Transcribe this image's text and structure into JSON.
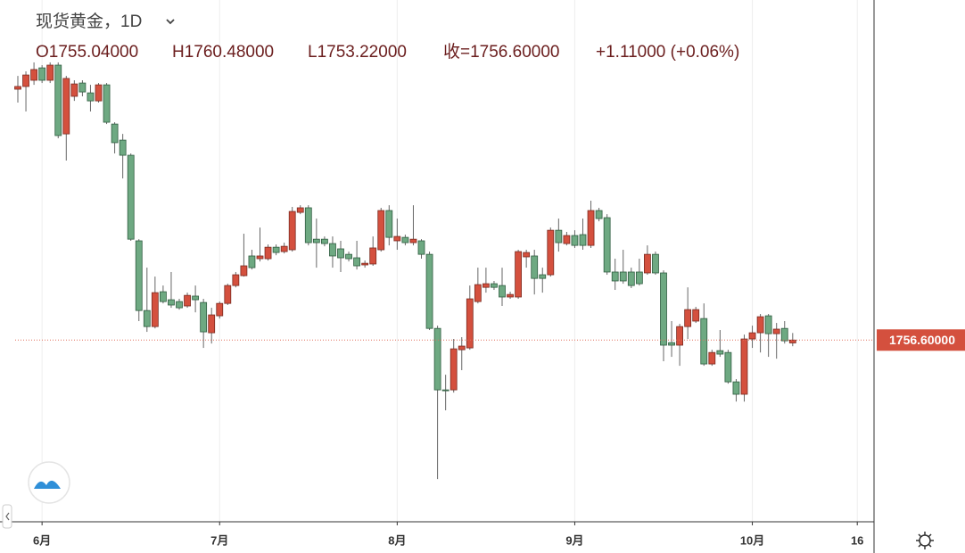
{
  "chart_data": {
    "type": "candlestick",
    "title": "现货黄金，1D",
    "legend_text": [
      "O1755.04000",
      "H1760.48000",
      "L1753.22000",
      "收=1756.60000",
      "+1.11000 (+0.06%)"
    ],
    "last_price": {
      "value": 1756.6,
      "label": "1756.60000"
    },
    "up_color": "#d4503e",
    "down_color": "#6ea982",
    "ylim": [
      1657,
      1943
    ],
    "categories": [
      null,
      null,
      null,
      "6月",
      null,
      null,
      null,
      null,
      null,
      null,
      null,
      null,
      null,
      null,
      null,
      null,
      null,
      null,
      null,
      null,
      null,
      null,
      null,
      null,
      null,
      "7月",
      null,
      null,
      null,
      null,
      null,
      null,
      null,
      null,
      null,
      null,
      null,
      null,
      null,
      null,
      null,
      null,
      null,
      null,
      null,
      null,
      null,
      "8月",
      null,
      null,
      null,
      null,
      null,
      null,
      null,
      null,
      null,
      null,
      null,
      null,
      null,
      null,
      null,
      null,
      null,
      null,
      null,
      null,
      null,
      "9月",
      null,
      null,
      null,
      null,
      null,
      null,
      null,
      null,
      null,
      null,
      null,
      null,
      null,
      null,
      null,
      null,
      null,
      null,
      null,
      null,
      null,
      "10月",
      null,
      null,
      null,
      null,
      null,
      null,
      null,
      null,
      null,
      null,
      null,
      null,
      "16"
    ],
    "open": [
      1894.1,
      1895.6,
      1899.0,
      1905.8,
      1899.0,
      1907.3,
      1869.6,
      1890.2,
      1897.5,
      1892.1,
      1887.7,
      1896.5,
      1875.0,
      1866.2,
      1857.9,
      1811.0,
      1772.8,
      1764.0,
      1783.1,
      1778.7,
      1777.7,
      1775.3,
      1780.7,
      1777.2,
      1760.6,
      1769.9,
      1776.7,
      1786.5,
      1791.9,
      1802.7,
      1801.2,
      1801.2,
      1807.5,
      1805.1,
      1806.1,
      1826.6,
      1829.1,
      1811.9,
      1811.9,
      1809.5,
      1806.6,
      1803.6,
      1801.7,
      1797.8,
      1798.3,
      1806.1,
      1827.6,
      1811.0,
      1812.9,
      1810.0,
      1811.0,
      1803.6,
      1763.0,
      1729.3,
      1729.3,
      1751.3,
      1752.3,
      1777.7,
      1785.5,
      1787.5,
      1786.5,
      1780.2,
      1780.2,
      1802.2,
      1802.7,
      1792.4,
      1792.4,
      1816.8,
      1809.5,
      1813.9,
      1814.4,
      1808.5,
      1827.6,
      1823.7,
      1793.9,
      1793.9,
      1793.9,
      1793.9,
      1793.4,
      1803.6,
      1793.4,
      1755.2,
      1753.8,
      1764.0,
      1767.0,
      1768.4,
      1743.5,
      1750.8,
      1749.8,
      1733.7,
      1726.9,
      1757.2,
      1760.6,
      1769.9,
      1760.1,
      1763.0,
      1755.04,
      null,
      null,
      null,
      null,
      null,
      null,
      null,
      null
    ],
    "high": [
      1901.4,
      1903.9,
      1908.8,
      1907.3,
      1908.8,
      1908.8,
      1901.4,
      1899.0,
      1899.0,
      1896.5,
      1897.5,
      1897.5,
      1876.0,
      1869.6,
      1858.9,
      1811.9,
      1796.3,
      1791.4,
      1786.5,
      1793.9,
      1779.2,
      1782.6,
      1786.5,
      1779.2,
      1774.3,
      1777.7,
      1787.5,
      1793.9,
      1814.9,
      1806.1,
      1818.3,
      1809.0,
      1809.0,
      1810.0,
      1829.6,
      1830.5,
      1830.5,
      1823.2,
      1813.4,
      1813.4,
      1811.0,
      1805.1,
      1811.0,
      1800.2,
      1813.4,
      1829.1,
      1830.5,
      1823.2,
      1814.4,
      1830.5,
      1811.9,
      1805.1,
      1764.5,
      1737.6,
      1757.2,
      1758.2,
      1786.5,
      1796.3,
      1796.3,
      1789.0,
      1796.3,
      1783.1,
      1806.1,
      1806.1,
      1806.1,
      1796.3,
      1818.3,
      1823.2,
      1815.9,
      1816.8,
      1823.2,
      1833.0,
      1829.1,
      1825.6,
      1801.2,
      1806.1,
      1796.3,
      1801.2,
      1808.5,
      1805.1,
      1794.8,
      1767.0,
      1765.5,
      1785.5,
      1774.8,
      1776.7,
      1751.3,
      1762.1,
      1751.3,
      1735.2,
      1759.6,
      1764.5,
      1770.9,
      1770.9,
      1766.0,
      1767.0,
      1760.48,
      null,
      null,
      null,
      null,
      null,
      null,
      null,
      null
    ],
    "low": [
      1886.8,
      1881.9,
      1896.5,
      1897.5,
      1897.5,
      1867.2,
      1855.0,
      1887.7,
      1890.2,
      1881.9,
      1886.8,
      1875.0,
      1858.9,
      1845.2,
      1811.0,
      1767.0,
      1761.1,
      1763.0,
      1776.7,
      1774.3,
      1773.3,
      1774.3,
      1771.8,
      1752.3,
      1754.7,
      1768.4,
      1775.8,
      1785.5,
      1791.4,
      1795.3,
      1799.7,
      1800.2,
      1803.1,
      1804.1,
      1805.1,
      1825.6,
      1808.5,
      1796.3,
      1808.0,
      1796.3,
      1793.9,
      1799.7,
      1795.3,
      1796.3,
      1797.3,
      1805.1,
      1808.5,
      1806.1,
      1808.5,
      1808.5,
      1801.2,
      1762.1,
      1680.4,
      1718.1,
      1727.8,
      1740.1,
      1751.3,
      1776.7,
      1782.6,
      1784.1,
      1775.3,
      1779.2,
      1779.2,
      1796.3,
      1781.6,
      1782.6,
      1791.4,
      1805.1,
      1808.5,
      1807.1,
      1806.1,
      1807.1,
      1821.7,
      1792.4,
      1784.1,
      1787.5,
      1785.1,
      1786.5,
      1792.4,
      1792.4,
      1745.0,
      1747.4,
      1742.5,
      1757.2,
      1766.0,
      1742.5,
      1742.5,
      1747.4,
      1732.7,
      1722.9,
      1722.9,
      1752.3,
      1749.8,
      1747.4,
      1746.4,
      1754.7,
      1753.22,
      null,
      null,
      null,
      null,
      null,
      null,
      null,
      null
    ],
    "close": [
      1895.6,
      1901.9,
      1904.9,
      1899.0,
      1907.3,
      1868.7,
      1900.0,
      1897.0,
      1892.6,
      1887.7,
      1896.5,
      1876.0,
      1864.8,
      1857.9,
      1811.9,
      1772.8,
      1764.0,
      1782.6,
      1777.7,
      1775.8,
      1774.3,
      1781.1,
      1778.7,
      1761.1,
      1770.4,
      1776.7,
      1786.5,
      1792.4,
      1797.3,
      1796.3,
      1802.7,
      1807.5,
      1804.6,
      1808.0,
      1827.1,
      1829.1,
      1810.0,
      1810.0,
      1809.5,
      1802.7,
      1801.7,
      1801.2,
      1797.3,
      1798.7,
      1807.1,
      1827.6,
      1812.9,
      1813.4,
      1810.0,
      1811.9,
      1803.6,
      1763.0,
      1729.3,
      1728.8,
      1751.8,
      1753.3,
      1779.2,
      1787.0,
      1787.5,
      1785.5,
      1780.2,
      1781.6,
      1805.1,
      1804.6,
      1790.4,
      1790.4,
      1816.8,
      1810.0,
      1813.9,
      1808.5,
      1808.5,
      1827.6,
      1823.2,
      1793.9,
      1789.0,
      1789.0,
      1786.5,
      1787.5,
      1803.6,
      1793.4,
      1753.8,
      1753.8,
      1764.0,
      1773.3,
      1773.3,
      1743.5,
      1749.8,
      1748.9,
      1733.7,
      1726.9,
      1757.2,
      1760.6,
      1769.4,
      1760.1,
      1762.6,
      1756.2,
      1756.6,
      null,
      null,
      null,
      null,
      null,
      null,
      null,
      null
    ]
  }
}
